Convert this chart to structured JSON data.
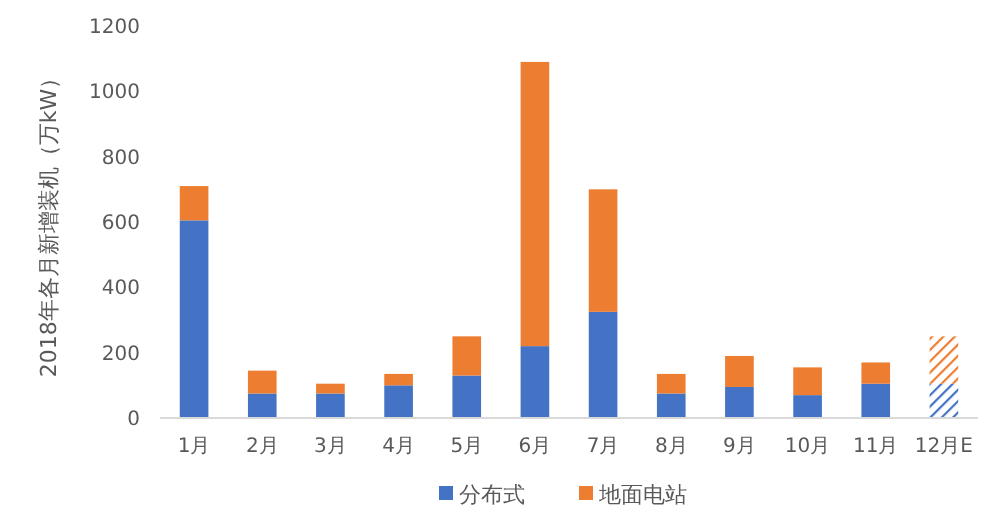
{
  "chart_data": {
    "type": "bar",
    "stacked": true,
    "ylabel": "2018年各月新增装机（万kW）",
    "categories": [
      "1月",
      "2月",
      "3月",
      "4月",
      "5月",
      "6月",
      "7月",
      "8月",
      "9月",
      "10月",
      "11月",
      "12月E"
    ],
    "series": [
      {
        "name": "分布式",
        "color": "#4472c4",
        "values": [
          605,
          75,
          75,
          100,
          130,
          220,
          325,
          75,
          95,
          70,
          105,
          105
        ]
      },
      {
        "name": "地面电站",
        "color": "#ed7d31",
        "values": [
          105,
          70,
          30,
          35,
          120,
          870,
          375,
          60,
          95,
          85,
          65,
          145
        ]
      }
    ],
    "ylim": [
      0,
      1200
    ],
    "yticks": [
      0,
      200,
      400,
      600,
      800,
      1000,
      1200
    ],
    "grid": false,
    "legend": "bottom"
  }
}
